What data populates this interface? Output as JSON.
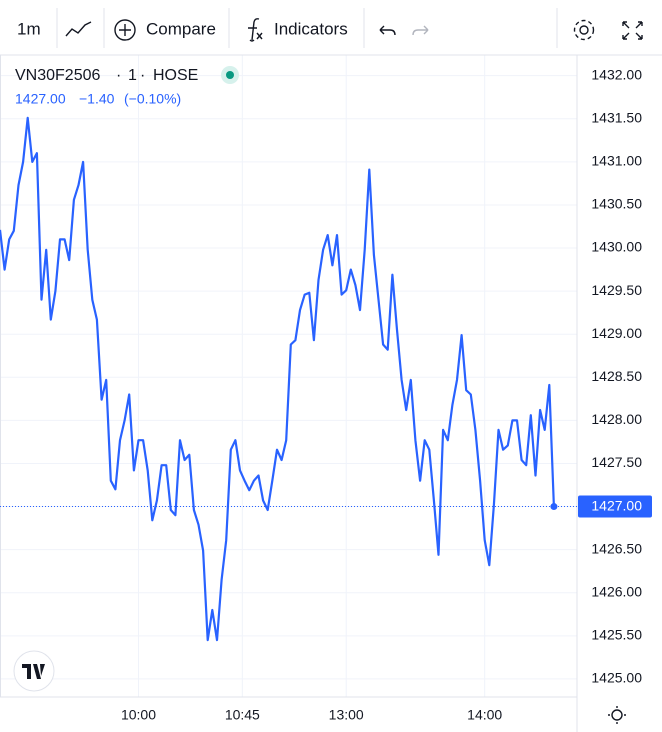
{
  "toolbar": {
    "interval": "1m",
    "compare": "Compare",
    "indicators": "Indicators"
  },
  "chart_data": {
    "type": "line",
    "legend": {
      "symbol": "VN30F2506",
      "interval": "1",
      "exchange": "HOSE",
      "last": "1427.00",
      "change": "−1.40",
      "change_pct": "(−0.10%)"
    },
    "color": "#2962ff",
    "grid": true,
    "values": [
      1430.21,
      1429.75,
      1430.1,
      1430.2,
      1430.73,
      1431.0,
      1431.51,
      1431.0,
      1431.1,
      1429.4,
      1429.98,
      1429.17,
      1429.5,
      1430.1,
      1430.1,
      1429.86,
      1430.56,
      1430.73,
      1431.0,
      1429.98,
      1429.4,
      1429.17,
      1428.24,
      1428.47,
      1427.3,
      1427.2,
      1427.77,
      1428.0,
      1428.3,
      1427.42,
      1427.77,
      1427.77,
      1427.42,
      1426.84,
      1427.07,
      1427.48,
      1427.48,
      1426.96,
      1426.9,
      1427.77,
      1427.54,
      1427.6,
      1426.96,
      1426.79,
      1426.49,
      1425.45,
      1425.8,
      1425.45,
      1426.15,
      1426.61,
      1427.66,
      1427.77,
      1427.42,
      1427.3,
      1427.19,
      1427.3,
      1427.36,
      1427.07,
      1426.96,
      1427.3,
      1427.66,
      1427.54,
      1427.77,
      1428.88,
      1428.93,
      1429.28,
      1429.46,
      1429.48,
      1428.93,
      1429.63,
      1429.98,
      1430.15,
      1429.8,
      1430.15,
      1429.46,
      1429.51,
      1429.75,
      1429.57,
      1429.28,
      1429.98,
      1430.91,
      1429.92,
      1429.4,
      1428.88,
      1428.82,
      1429.69,
      1429.05,
      1428.47,
      1428.12,
      1428.47,
      1427.77,
      1427.3,
      1427.77,
      1427.66,
      1427.07,
      1426.44,
      1427.89,
      1427.77,
      1428.18,
      1428.47,
      1428.99,
      1428.35,
      1428.3,
      1427.89,
      1427.3,
      1426.61,
      1426.32,
      1427.02,
      1427.89,
      1427.66,
      1427.71,
      1428.0,
      1428.0,
      1427.54,
      1427.48,
      1428.06,
      1427.36,
      1428.12,
      1427.89,
      1428.41,
      1427.0
    ],
    "xlim": [
      0,
      125
    ],
    "xticks": [
      {
        "value": 30,
        "label": "10:00"
      },
      {
        "value": 52.5,
        "label": "10:45"
      },
      {
        "value": 75,
        "label": "13:00"
      },
      {
        "value": 105,
        "label": "14:00"
      }
    ],
    "ylim": [
      1424.79,
      1432.24
    ],
    "yticks": [
      {
        "value": 1425,
        "label": "1425.00"
      },
      {
        "value": 1425.5,
        "label": "1425.50"
      },
      {
        "value": 1426,
        "label": "1426.00"
      },
      {
        "value": 1426.5,
        "label": "1426.50"
      },
      {
        "value": 1427,
        "label": "1427.00"
      },
      {
        "value": 1427.5,
        "label": "1427.50"
      },
      {
        "value": 1428,
        "label": "1428.00"
      },
      {
        "value": 1428.5,
        "label": "1428.50"
      },
      {
        "value": 1429,
        "label": "1429.00"
      },
      {
        "value": 1429.5,
        "label": "1429.50"
      },
      {
        "value": 1430,
        "label": "1430.00"
      },
      {
        "value": 1430.5,
        "label": "1430.50"
      },
      {
        "value": 1431,
        "label": "1431.00"
      },
      {
        "value": 1431.5,
        "label": "1431.50"
      },
      {
        "value": 1432,
        "label": "1432.00"
      }
    ]
  }
}
